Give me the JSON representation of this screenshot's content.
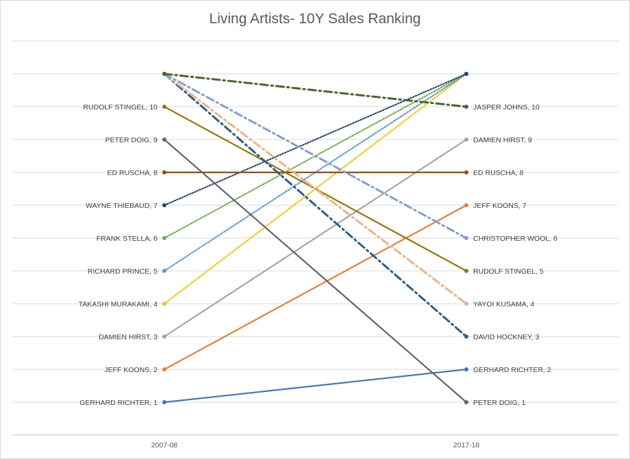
{
  "chart_data": {
    "type": "line",
    "title": "Living Artists- 10Y Sales Ranking",
    "categories": [
      "2007-08",
      "2017-18"
    ],
    "ylim": [
      0,
      11
    ],
    "grid": true,
    "series": [
      {
        "name": "GERHARD RICHTER",
        "values": [
          1,
          2
        ],
        "end_name": "GERHARD RICHTER",
        "color": "#4472c4",
        "dash": "solid"
      },
      {
        "name": "JEFF KOONS",
        "values": [
          2,
          7
        ],
        "end_name": "JEFF KOONS",
        "color": "#ed7d31",
        "dash": "solid"
      },
      {
        "name": "DAMIEN HIRST",
        "values": [
          3,
          9
        ],
        "end_name": "DAMIEN HIRST",
        "color": "#a5a5a5",
        "dash": "solid"
      },
      {
        "name": "TAKASHI MURAKAMI",
        "values": [
          4,
          11
        ],
        "end_name": "",
        "color": "#ffc000",
        "dash": "dot"
      },
      {
        "name": "RICHARD PRINCE",
        "values": [
          5,
          11
        ],
        "end_name": "",
        "color": "#5b9bd5",
        "dash": "dot"
      },
      {
        "name": "FRANK STELLA",
        "values": [
          6,
          11
        ],
        "end_name": "",
        "color": "#70ad47",
        "dash": "dot"
      },
      {
        "name": "WAYNE THIEBAUD",
        "values": [
          7,
          11
        ],
        "end_name": "",
        "color": "#264478",
        "dash": "dot"
      },
      {
        "name": "ED RUSCHA",
        "values": [
          8,
          8
        ],
        "end_name": "ED RUSCHA",
        "color": "#9e480e",
        "dash": "solid"
      },
      {
        "name": "PETER DOIG",
        "values": [
          9,
          1
        ],
        "end_name": "PETER DOIG",
        "color": "#636363",
        "dash": "solid"
      },
      {
        "name": "RUDOLF STINGEL",
        "values": [
          10,
          5
        ],
        "end_name": "RUDOLF STINGEL",
        "color": "#997300",
        "dash": "solid"
      },
      {
        "name": "",
        "values": [
          11,
          3
        ],
        "end_name": "DAVID HOCKNEY",
        "color": "#255e91",
        "dash": "dashdot"
      },
      {
        "name": "",
        "values": [
          11,
          4
        ],
        "end_name": "YAYOI KUSAMA",
        "color": "#f4b183",
        "dash": "dashdot"
      },
      {
        "name": "",
        "values": [
          11,
          6
        ],
        "end_name": "CHRISTOPHER WOOL",
        "color": "#7f9fd4",
        "dash": "dashdot"
      },
      {
        "name": "",
        "values": [
          11,
          10
        ],
        "end_name": "JASPER JOHNS",
        "color": "#43682b",
        "dash": "dashdot"
      }
    ]
  }
}
